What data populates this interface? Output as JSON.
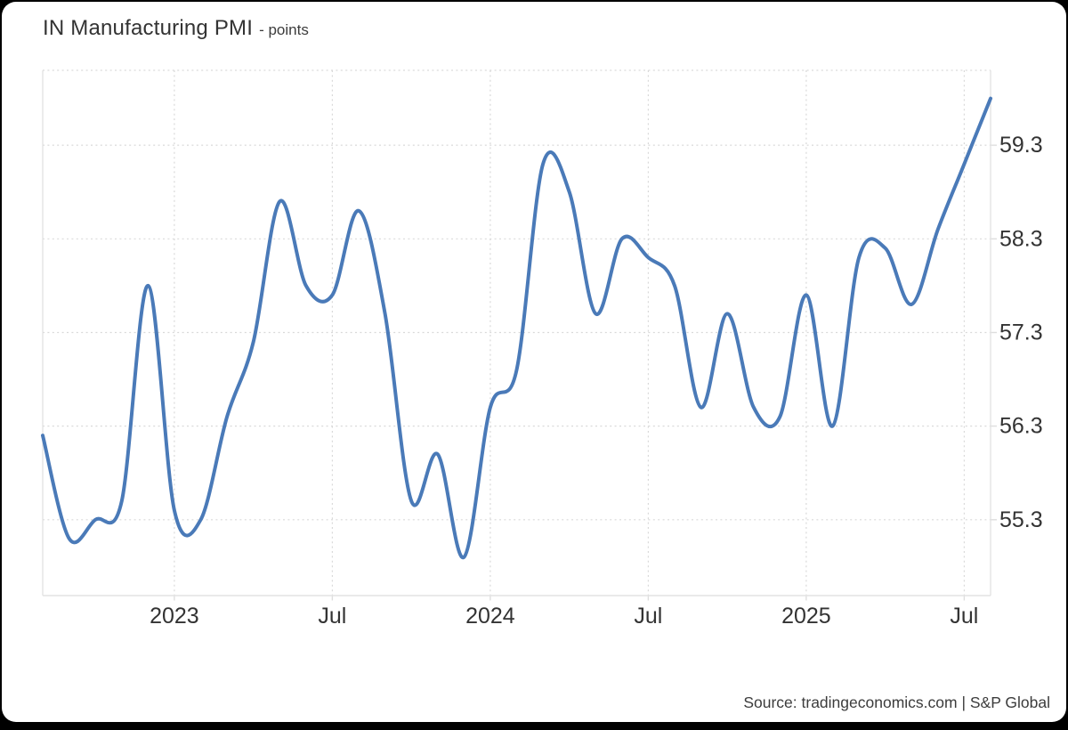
{
  "header": {
    "title": "IN Manufacturing PMI",
    "subtitle": "- points"
  },
  "footer": {
    "source": "Source: tradingeconomics.com | S&P Global"
  },
  "colors": {
    "line": "#4a7ab8",
    "grid_dotted": "#d9d9d9",
    "axis_border": "#e3e3e3",
    "tick": "#dedede",
    "label_text": "#333333",
    "title_text": "#333333",
    "source_text": "#3c3c3c",
    "card_bg": "#ffffff",
    "page_bg": "#000000"
  },
  "chart_data": {
    "type": "line",
    "title": "IN Manufacturing PMI",
    "unit": "points",
    "legend": "none",
    "grid": "dotted",
    "x": [
      "Aug 2022",
      "Sep 2022",
      "Oct 2022",
      "Nov 2022",
      "Dec 2022",
      "Jan 2023",
      "Feb 2023",
      "Mar 2023",
      "Apr 2023",
      "May 2023",
      "Jun 2023",
      "Jul 2023",
      "Aug 2023",
      "Sep 2023",
      "Oct 2023",
      "Nov 2023",
      "Dec 2023",
      "Jan 2024",
      "Feb 2024",
      "Mar 2024",
      "Apr 2024",
      "May 2024",
      "Jun 2024",
      "Jul 2024",
      "Aug 2024",
      "Sep 2024",
      "Oct 2024",
      "Nov 2024",
      "Dec 2024",
      "Jan 2025",
      "Feb 2025",
      "Mar 2025",
      "Apr 2025",
      "May 2025",
      "Jun 2025",
      "Jul 2025",
      "Aug 2025"
    ],
    "series": [
      {
        "name": "IN Manufacturing PMI",
        "values": [
          56.2,
          55.1,
          55.3,
          55.5,
          57.8,
          55.4,
          55.3,
          56.4,
          57.2,
          58.7,
          57.8,
          57.7,
          58.6,
          57.5,
          55.5,
          56.0,
          54.9,
          56.5,
          56.9,
          59.1,
          58.8,
          57.5,
          58.3,
          58.1,
          57.8,
          56.5,
          57.5,
          56.5,
          56.4,
          57.7,
          56.3,
          58.1,
          58.2,
          57.6,
          58.4,
          59.1,
          59.8
        ]
      }
    ],
    "ylim": [
      54.49,
      60.1
    ],
    "yticks": [
      55.3,
      56.3,
      57.3,
      58.3,
      59.3
    ],
    "xticks": [
      {
        "index": 5,
        "label": "2023"
      },
      {
        "index": 11,
        "label": "Jul"
      },
      {
        "index": 17,
        "label": "2024"
      },
      {
        "index": 23,
        "label": "Jul"
      },
      {
        "index": 29,
        "label": "2025"
      },
      {
        "index": 35,
        "label": "Jul"
      }
    ]
  }
}
